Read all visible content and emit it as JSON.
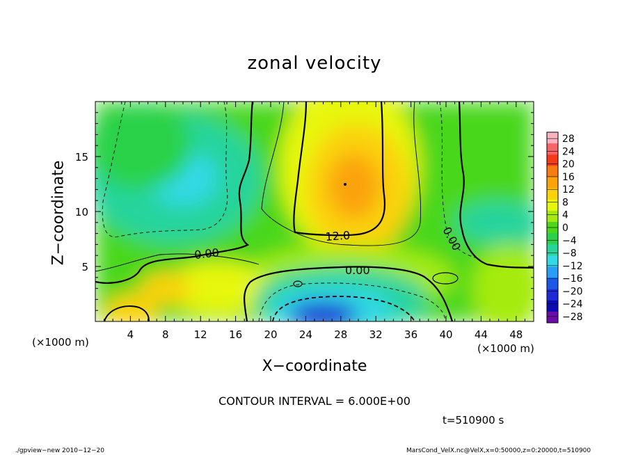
{
  "chart_data": {
    "type": "heatmap",
    "title": "zonal velocity",
    "xlabel": "X−coordinate",
    "ylabel": "Z−coordinate",
    "x_unit_left": "(×1000 m)",
    "x_unit_right": "(×1000 m)",
    "xlim": [
      0,
      50
    ],
    "ylim": [
      0,
      20
    ],
    "x_ticks": [
      "4",
      "8",
      "12",
      "16",
      "20",
      "24",
      "28",
      "32",
      "36",
      "40",
      "44",
      "48"
    ],
    "y_ticks": [
      "5",
      "10",
      "15"
    ],
    "colorbar_ticks": [
      "28",
      "24",
      "20",
      "16",
      "12",
      "8",
      "4",
      "0",
      "−4",
      "−8",
      "−12",
      "−16",
      "−20",
      "−24",
      "−28"
    ],
    "colorbar_range": [
      -30,
      30
    ],
    "colorbar_colors": [
      "#fbb4bf",
      "#f76569",
      "#f33a19",
      "#f77d10",
      "#fba308",
      "#fbd20c",
      "#e7f70c",
      "#a5eb10",
      "#4ad71d",
      "#29d24a",
      "#27d49c",
      "#33d9e6",
      "#2a9ef7",
      "#1c58e7",
      "#1e2bd6",
      "#0b0bb5",
      "#6b0ba8"
    ],
    "contour_labels": [
      "0.00",
      "12.0",
      "0.00",
      "0.00"
    ],
    "contour_interval": "CONTOUR INTERVAL = 6.000E+00",
    "time_label": "t=510900 s",
    "grid": false,
    "legend": "right colorbar",
    "features": [
      {
        "desc": "positive jet core",
        "x": 29,
        "z": 12.5,
        "value": 14
      },
      {
        "desc": "negative core near bottom",
        "x": 26,
        "z": 1,
        "value": -24
      },
      {
        "desc": "negative region upper left",
        "x": 8,
        "z": 13,
        "value": -9
      },
      {
        "desc": "positive blob bottom left",
        "x": 4,
        "z": 0.8,
        "value": 10
      }
    ]
  },
  "footer": {
    "left": "./gpview−new  2010−12−20",
    "right": "MarsCond_VelX.nc@VelX,x=0:50000,z=0:20000,t=510900"
  }
}
